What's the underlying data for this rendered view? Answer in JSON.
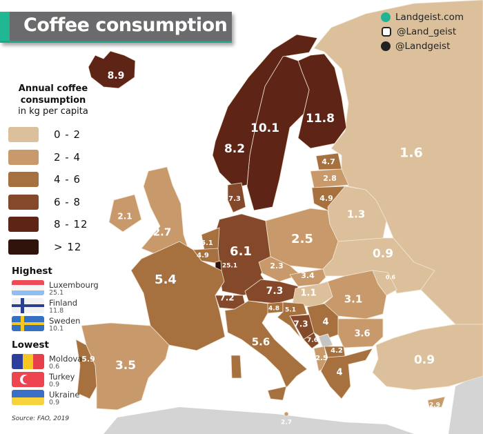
{
  "title": "Coffee consumption",
  "social": [
    {
      "icon": "globe-icon",
      "text": "Landgeist.com"
    },
    {
      "icon": "instagram-icon",
      "text": "@Land_geist"
    },
    {
      "icon": "twitter-icon",
      "text": "@Landgeist"
    }
  ],
  "legend": {
    "title_line1": "Annual coffee",
    "title_line2": "consumption",
    "subtitle": "in kg per capita",
    "bins": [
      {
        "label": "0  -  2",
        "color": "#dcc09c"
      },
      {
        "label": "2  -  4",
        "color": "#c8996a"
      },
      {
        "label": "4  -  6",
        "color": "#a6703f"
      },
      {
        "label": "6  -  8",
        "color": "#84482a"
      },
      {
        "label": "8  -  12",
        "color": "#5e2517"
      },
      {
        "label": "> 12",
        "color": "#30140b"
      }
    ]
  },
  "highest": {
    "heading": "Highest",
    "items": [
      {
        "country": "Luxembourg",
        "value": "25.1"
      },
      {
        "country": "Finland",
        "value": "11.8"
      },
      {
        "country": "Sweden",
        "value": "10.1"
      }
    ]
  },
  "lowest": {
    "heading": "Lowest",
    "items": [
      {
        "country": "Moldova",
        "value": "0.6"
      },
      {
        "country": "Turkey",
        "value": "0.9"
      },
      {
        "country": "Ukraine",
        "value": "0.9"
      }
    ]
  },
  "source": "Source: FAO, 2019",
  "map": {
    "no_data_color": "#c4c4c4",
    "countries": [
      {
        "name": "Iceland",
        "value": 8.9
      },
      {
        "name": "Norway",
        "value": 8.2
      },
      {
        "name": "Sweden",
        "value": 10.1
      },
      {
        "name": "Finland",
        "value": 11.8
      },
      {
        "name": "Russia",
        "value": 1.6
      },
      {
        "name": "Estonia",
        "value": 4.7
      },
      {
        "name": "Latvia",
        "value": 2.8
      },
      {
        "name": "Lithuania",
        "value": 4.9
      },
      {
        "name": "Denmark",
        "value": 7.3
      },
      {
        "name": "Ireland",
        "value": 2.1
      },
      {
        "name": "United Kingdom",
        "value": 2.7
      },
      {
        "name": "Belarus",
        "value": 1.3
      },
      {
        "name": "Netherlands",
        "value": 5.1
      },
      {
        "name": "Belgium",
        "value": 4.9
      },
      {
        "name": "Luxembourg",
        "value": 25.1
      },
      {
        "name": "Germany",
        "value": 6.1
      },
      {
        "name": "Poland",
        "value": 2.5
      },
      {
        "name": "Ukraine",
        "value": 0.9
      },
      {
        "name": "Czechia",
        "value": 2.3
      },
      {
        "name": "Slovakia",
        "value": 3.4
      },
      {
        "name": "Moldova",
        "value": 0.6
      },
      {
        "name": "France",
        "value": 5.4
      },
      {
        "name": "Austria",
        "value": 7.3
      },
      {
        "name": "Hungary",
        "value": 1.1
      },
      {
        "name": "Romania",
        "value": 3.1
      },
      {
        "name": "Switzerland",
        "value": 7.2
      },
      {
        "name": "Slovenia",
        "value": 4.8
      },
      {
        "name": "Croatia",
        "value": 5.1
      },
      {
        "name": "Bosnia and Herzegovina",
        "value": 7.3
      },
      {
        "name": "Serbia",
        "value": 4
      },
      {
        "name": "Bulgaria",
        "value": 3.6
      },
      {
        "name": "Montenegro",
        "value": 7.6
      },
      {
        "name": "North Macedonia",
        "value": 4.2
      },
      {
        "name": "Albania",
        "value": 2.5
      },
      {
        "name": "Greece",
        "value": 4
      },
      {
        "name": "Italy",
        "value": 5.6
      },
      {
        "name": "Spain",
        "value": 3.5
      },
      {
        "name": "Portugal",
        "value": 5.9
      },
      {
        "name": "Turkey",
        "value": 0.9
      },
      {
        "name": "Cyprus",
        "value": 2.9
      },
      {
        "name": "Malta",
        "value": 2.7
      }
    ]
  }
}
